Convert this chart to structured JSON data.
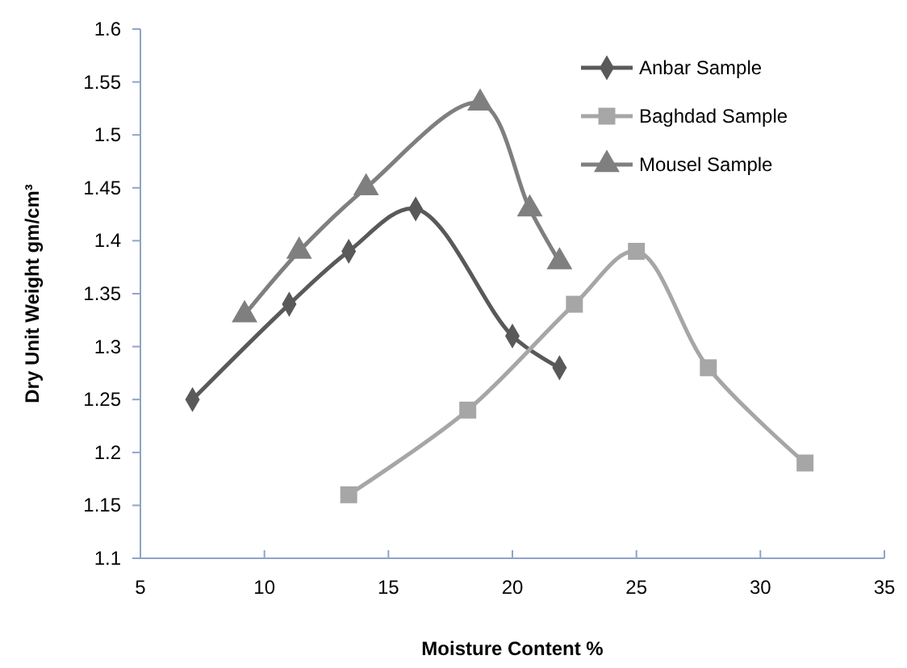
{
  "chart_data": {
    "type": "line",
    "xlabel": "Moisture Content %",
    "ylabel": "Dry Unit Weight gm/cm³",
    "xlim": [
      5,
      35
    ],
    "xticks": [
      5,
      10,
      15,
      20,
      25,
      30,
      35
    ],
    "ylim": [
      1.1,
      1.6
    ],
    "yticks": [
      1.1,
      1.15,
      1.2,
      1.25,
      1.3,
      1.35,
      1.4,
      1.45,
      1.5,
      1.55,
      1.6
    ],
    "grid": false,
    "legend": "top right",
    "series": [
      {
        "name": "Anbar Sample",
        "color": "#595959",
        "marker": "diamond",
        "x": [
          7.1,
          11,
          13.4,
          16.1,
          20,
          21.9
        ],
        "values": [
          1.25,
          1.34,
          1.39,
          1.43,
          1.31,
          1.28
        ]
      },
      {
        "name": "Baghdad Sample",
        "color": "#a6a6a6",
        "marker": "square",
        "x": [
          13.4,
          18.2,
          22.5,
          25,
          27.9,
          31.8
        ],
        "values": [
          1.16,
          1.24,
          1.34,
          1.39,
          1.28,
          1.19
        ]
      },
      {
        "name": "Mousel Sample",
        "color": "#7f7f7f",
        "marker": "triangle",
        "x": [
          9.2,
          11.4,
          14.1,
          18.7,
          20.7,
          21.9
        ],
        "values": [
          1.33,
          1.39,
          1.45,
          1.53,
          1.43,
          1.38
        ]
      }
    ]
  }
}
